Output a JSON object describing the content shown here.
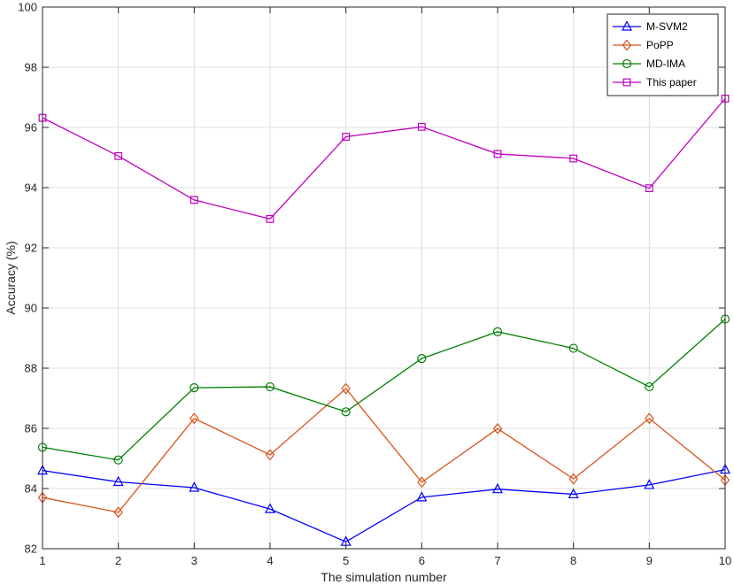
{
  "chart_data": {
    "type": "line",
    "title": "",
    "xlabel": "The simulation number",
    "ylabel": "Accuracy (%)",
    "x": [
      1,
      2,
      3,
      4,
      5,
      6,
      7,
      8,
      9,
      10
    ],
    "xlim": [
      1,
      10
    ],
    "ylim": [
      82,
      100
    ],
    "xticks": [
      "1",
      "2",
      "3",
      "4",
      "5",
      "6",
      "7",
      "8",
      "9",
      "10"
    ],
    "yticks": [
      "82",
      "84",
      "86",
      "88",
      "90",
      "92",
      "94",
      "96",
      "98",
      "100"
    ],
    "grid": true,
    "legend_position": "top-right",
    "series": [
      {
        "name": "M-SVM2",
        "color": "#0000ff",
        "marker": "triangle",
        "values": [
          84.6,
          84.22,
          84.03,
          83.32,
          82.23,
          83.71,
          83.98,
          83.81,
          84.12,
          84.63
        ]
      },
      {
        "name": "PoPP",
        "color": "#d95319",
        "marker": "diamond",
        "values": [
          83.7,
          83.21,
          86.33,
          85.12,
          87.32,
          84.21,
          85.99,
          84.32,
          86.33,
          84.28
        ]
      },
      {
        "name": "MD-IMA",
        "color": "#008000",
        "marker": "circle",
        "values": [
          85.37,
          84.95,
          87.35,
          87.38,
          86.55,
          88.32,
          89.21,
          88.66,
          87.38,
          89.63
        ]
      },
      {
        "name": "This paper",
        "color": "#bf00bf",
        "marker": "square",
        "values": [
          96.32,
          95.05,
          93.59,
          92.96,
          95.69,
          96.02,
          95.12,
          94.97,
          93.98,
          96.96
        ]
      }
    ]
  }
}
